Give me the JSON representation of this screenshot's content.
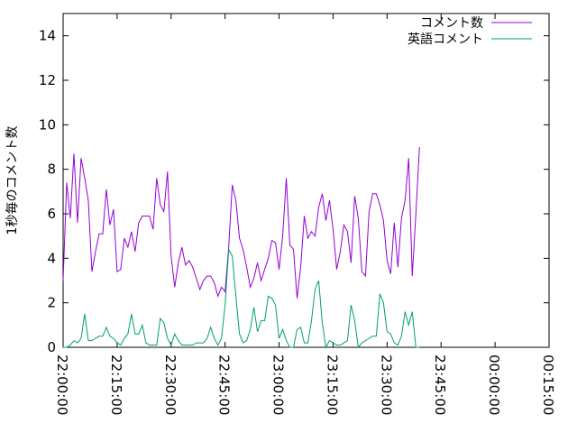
{
  "chart_data": {
    "type": "line",
    "title": "",
    "xlabel": "",
    "ylabel": "1秒毎のコメント数",
    "xlim": [
      "22:00:00",
      "00:15:00"
    ],
    "ylim": [
      0,
      15
    ],
    "x_ticks": [
      "22:00:00",
      "22:15:00",
      "22:30:00",
      "22:45:00",
      "23:00:00",
      "23:15:00",
      "23:30:00",
      "23:45:00",
      "00:00:00",
      "00:15:00"
    ],
    "y_ticks": [
      "0",
      "2",
      "4",
      "6",
      "8",
      "10",
      "12",
      "14"
    ],
    "grid": false,
    "legend_position": "top-right",
    "x_sample_interval_minutes": 1,
    "series": [
      {
        "name": "コメント数",
        "color": "#9400d3",
        "values": [
          3.0,
          7.4,
          5.8,
          8.7,
          5.6,
          8.5,
          7.6,
          6.6,
          3.4,
          4.3,
          5.1,
          5.1,
          7.1,
          5.5,
          6.2,
          3.4,
          3.5,
          4.9,
          4.5,
          5.2,
          4.3,
          5.6,
          5.9,
          5.9,
          5.9,
          5.3,
          7.6,
          6.4,
          6.1,
          7.9,
          4.1,
          2.7,
          3.8,
          4.5,
          3.7,
          3.9,
          3.6,
          3.1,
          2.6,
          3.0,
          3.2,
          3.2,
          2.9,
          2.3,
          2.7,
          2.5,
          4.5,
          7.3,
          6.6,
          4.9,
          4.4,
          3.6,
          2.7,
          3.1,
          3.8,
          3.0,
          3.5,
          4.0,
          4.8,
          4.7,
          3.5,
          5.0,
          7.6,
          4.6,
          4.4,
          2.2,
          3.6,
          5.9,
          4.9,
          5.2,
          5.0,
          6.3,
          6.9,
          5.7,
          6.6,
          5.3,
          3.5,
          4.3,
          5.5,
          5.2,
          3.8,
          6.8,
          5.8,
          3.4,
          3.2,
          6.1,
          6.9,
          6.9,
          6.4,
          5.7,
          3.9,
          3.3,
          5.6,
          3.6,
          5.8,
          6.6,
          8.5,
          3.2,
          6.0,
          9.0
        ]
      },
      {
        "name": "英語コメント",
        "color": "#009e73",
        "values": [
          0.0,
          0.0,
          0.1,
          0.3,
          0.2,
          0.4,
          1.5,
          0.3,
          0.3,
          0.4,
          0.5,
          0.5,
          0.9,
          0.5,
          0.4,
          0.2,
          0.1,
          0.4,
          0.6,
          1.5,
          0.6,
          0.6,
          1.0,
          0.2,
          0.1,
          0.1,
          0.1,
          1.3,
          1.1,
          0.4,
          0.1,
          0.6,
          0.3,
          0.1,
          0.1,
          0.1,
          0.1,
          0.2,
          0.2,
          0.2,
          0.4,
          0.9,
          0.4,
          0.1,
          0.4,
          1.9,
          4.4,
          4.1,
          2.3,
          0.6,
          0.2,
          0.3,
          0.8,
          1.8,
          0.7,
          1.2,
          1.2,
          2.3,
          2.2,
          1.9,
          0.4,
          0.8,
          0.3,
          0.0,
          0.0,
          0.8,
          0.9,
          0.2,
          0.2,
          1.2,
          2.6,
          3.0,
          1.1,
          0.0,
          0.3,
          0.2,
          0.1,
          0.1,
          0.2,
          0.3,
          1.9,
          1.2,
          0.0,
          0.2,
          0.3,
          0.4,
          0.5,
          0.5,
          2.4,
          2.0,
          0.7,
          0.6,
          0.2,
          0.1,
          0.5,
          1.6,
          1.0,
          1.6,
          0.0,
          0.0
        ]
      }
    ]
  }
}
